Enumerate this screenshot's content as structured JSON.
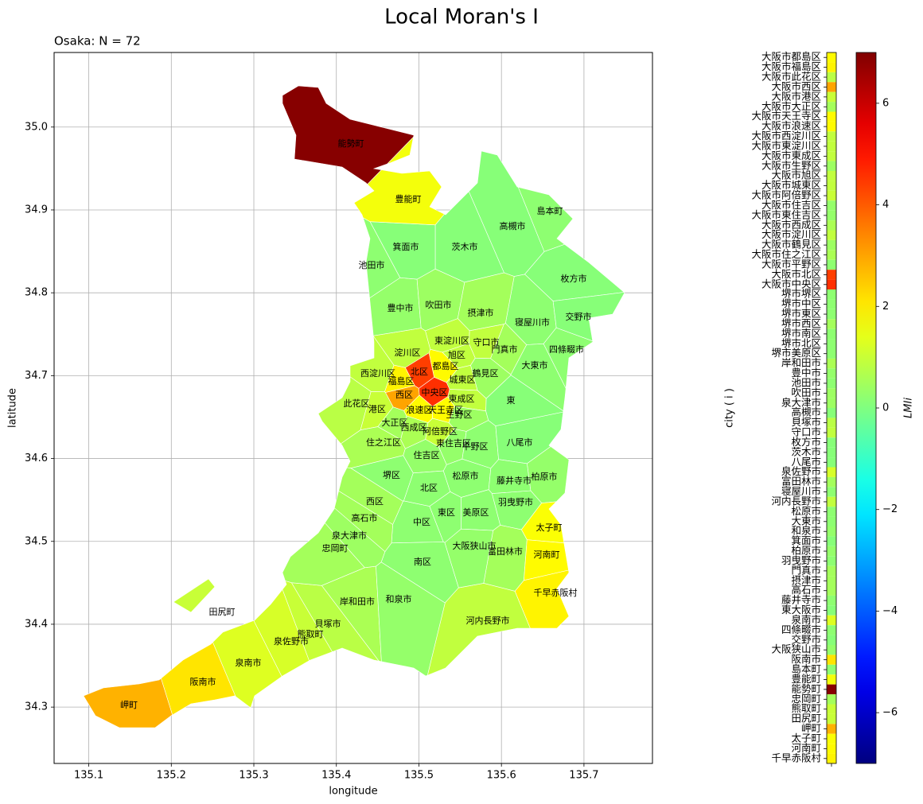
{
  "chart_data": {
    "type": "choropleth",
    "title": "Local Moran's I",
    "subtitle": "Osaka: N = 72",
    "xlabel": "longitude",
    "ylabel": "latitude",
    "xlim": [
      135.058,
      135.783
    ],
    "ylim": [
      34.232,
      35.09
    ],
    "xticks": [
      135.1,
      135.2,
      135.3,
      135.4,
      135.5,
      135.6,
      135.7
    ],
    "yticks": [
      {
        "value": 34.3,
        "label": "34.3"
      },
      {
        "value": 34.4,
        "label": "34.4"
      },
      {
        "value": 34.5,
        "label": "34.5"
      },
      {
        "value": 34.6,
        "label": "34.6"
      },
      {
        "value": 34.7,
        "label": "34.7"
      },
      {
        "value": 34.8,
        "label": "34.8"
      },
      {
        "value": 34.9,
        "label": "34.9"
      },
      {
        "value": 35,
        "label": "35.0"
      }
    ],
    "grid": true,
    "colormap": "jet",
    "clim": [
      -7,
      7
    ],
    "colorbar_ticks": [
      {
        "value": -6,
        "label": "−6"
      },
      {
        "value": -4,
        "label": "−4"
      },
      {
        "value": -2,
        "label": "−2"
      },
      0,
      2,
      4,
      6
    ],
    "colorbar_label": "LMIi",
    "strip_label": "city ( i )",
    "categories": [
      "大阪市都島区",
      "大阪市福島区",
      "大阪市此花区",
      "大阪市西区",
      "大阪市港区",
      "大阪市大正区",
      "大阪市天王寺区",
      "大阪市浪速区",
      "大阪市西淀川区",
      "大阪市東淀川区",
      "大阪市東成区",
      "大阪市生野区",
      "大阪市旭区",
      "大阪市城東区",
      "大阪市阿倍野区",
      "大阪市住吉区",
      "大阪市東住吉区",
      "大阪市西成区",
      "大阪市淀川区",
      "大阪市鶴見区",
      "大阪市住之江区",
      "大阪市平野区",
      "大阪市北区",
      "大阪市中央区",
      "堺市堺区",
      "堺市中区",
      "堺市東区",
      "堺市西区",
      "堺市南区",
      "堺市北区",
      "堺市美原区",
      "岸和田市",
      "豊中市",
      "池田市",
      "吹田市",
      "泉大津市",
      "高槻市",
      "貝塚市",
      "守口市",
      "枚方市",
      "茨木市",
      "八尾市",
      "泉佐野市",
      "富田林市",
      "寝屋川市",
      "河内長野市",
      "松原市",
      "大東市",
      "和泉市",
      "箕面市",
      "柏原市",
      "羽曳野市",
      "門真市",
      "摂津市",
      "高石市",
      "藤井寺市",
      "東大阪市",
      "泉南市",
      "四條畷市",
      "交野市",
      "大阪狭山市",
      "阪南市",
      "島本町",
      "豊能町",
      "能勢町",
      "忠岡町",
      "熊取町",
      "田尻町",
      "岬町",
      "太子町",
      "河南町",
      "千早赤阪村"
    ],
    "map_labels": [
      "都島区",
      "福島区",
      "此花区",
      "西区",
      "港区",
      "大正区",
      "天王寺区",
      "浪速区",
      "西淀川区",
      "東淀川区",
      "東成区",
      "生野区",
      "旭区",
      "城東区",
      "阿倍野区",
      "住吉区",
      "東住吉区",
      "西成区",
      "淀川区",
      "鶴見区",
      "住之江区",
      "平野区",
      "北区",
      "中央区",
      "堺区",
      "中区",
      "東区",
      "西区",
      "南区",
      "北区",
      "美原区",
      "岸和田市",
      "豊中市",
      "池田市",
      "吹田市",
      "泉大津市",
      "高槻市",
      "貝塚市",
      "守口市",
      "枚方市",
      "茨木市",
      "八尾市",
      "泉佐野市",
      "富田林市",
      "寝屋川市",
      "河内長野市",
      "松原市",
      "大東市",
      "和泉市",
      "箕面市",
      "柏原市",
      "羽曳野市",
      "門真市",
      "摂津市",
      "高石市",
      "藤井寺市",
      "東",
      "泉南市",
      "四條畷市",
      "交野市",
      "大阪狭山市",
      "阪南市",
      "島本町",
      "豊能町",
      "能勢町",
      "忠岡町",
      "熊取町",
      "田尻町",
      "岬町",
      "太子町",
      "河南町",
      "千早赤阪村"
    ],
    "values": [
      1.8,
      1.9,
      0.8,
      3.0,
      1.0,
      0.5,
      1.8,
      1.8,
      0.9,
      0.9,
      0.9,
      0.4,
      0.9,
      0.9,
      1.0,
      0.3,
      0.3,
      0.6,
      0.9,
      0.4,
      0.6,
      0.2,
      4.4,
      4.6,
      0.2,
      0.2,
      0.2,
      0.5,
      0.2,
      0.2,
      0.2,
      0.6,
      0.3,
      0.2,
      0.4,
      0.4,
      0.1,
      0.8,
      0.9,
      0.1,
      0.1,
      0.1,
      1.2,
      0.5,
      0.2,
      0.9,
      0.2,
      0.2,
      0.3,
      0.1,
      0.3,
      0.2,
      0.5,
      0.5,
      0.5,
      0.2,
      0.1,
      1.3,
      0.2,
      0.1,
      0.3,
      2.1,
      0.2,
      1.6,
      6.9,
      0.5,
      1.0,
      1.0,
      2.8,
      1.7,
      1.8,
      1.9
    ]
  }
}
